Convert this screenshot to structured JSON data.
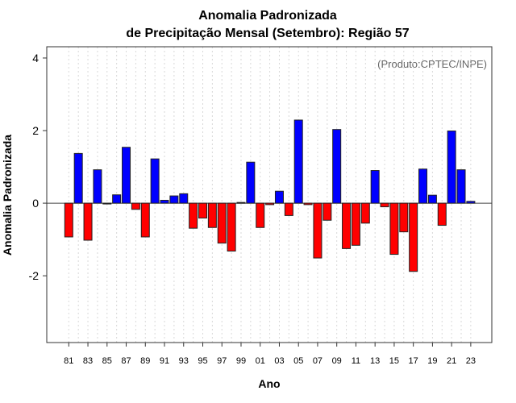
{
  "chart_data": {
    "type": "bar",
    "title": [
      "Anomalia Padronizada",
      "de Precipitação Mensal (Setembro): Região 57"
    ],
    "annotation": "(Produto:CPTEC/INPE)",
    "xlabel": "Ano",
    "ylabel": "Anomalia Padronizada",
    "ylim": [
      -3.84,
      4.31
    ],
    "xlim": [
      1978.7,
      2025.2
    ],
    "yticks": [
      -2,
      0,
      2,
      4
    ],
    "ytick_labels": [
      "-2",
      "0",
      "2",
      "4"
    ],
    "xtick_labels": [
      "81",
      "83",
      "85",
      "87",
      "89",
      "91",
      "93",
      "95",
      "97",
      "99",
      "01",
      "03",
      "05",
      "07",
      "09",
      "11",
      "13",
      "15",
      "17",
      "19",
      "21",
      "23"
    ],
    "xtick_years": [
      1981,
      1983,
      1985,
      1987,
      1989,
      1991,
      1993,
      1995,
      1997,
      1999,
      2001,
      2003,
      2005,
      2007,
      2009,
      2011,
      2013,
      2015,
      2017,
      2019,
      2021,
      2023
    ],
    "grid": "vertical dotted per year",
    "colors": {
      "positive": "#0000ff",
      "negative": "#ff0000"
    },
    "years": [
      1981,
      1982,
      1983,
      1984,
      1985,
      1986,
      1987,
      1988,
      1989,
      1990,
      1991,
      1992,
      1993,
      1994,
      1995,
      1996,
      1997,
      1998,
      1999,
      2000,
      2001,
      2002,
      2003,
      2004,
      2005,
      2006,
      2007,
      2008,
      2009,
      2010,
      2011,
      2012,
      2013,
      2014,
      2015,
      2016,
      2017,
      2018,
      2019,
      2020,
      2021,
      2022,
      2023
    ],
    "values": [
      -0.93,
      1.37,
      -1.02,
      0.92,
      -0.02,
      0.23,
      1.54,
      -0.17,
      -0.93,
      1.22,
      0.08,
      0.2,
      0.26,
      -0.69,
      -0.41,
      -0.67,
      -1.1,
      -1.32,
      0.02,
      1.13,
      -0.67,
      -0.04,
      0.33,
      -0.34,
      2.29,
      -0.04,
      -1.51,
      -0.47,
      2.03,
      -1.25,
      -1.16,
      -0.55,
      0.9,
      -0.1,
      -1.41,
      -0.79,
      -1.88,
      0.94,
      0.22,
      -0.61,
      1.99,
      0.92,
      0.05
    ]
  }
}
